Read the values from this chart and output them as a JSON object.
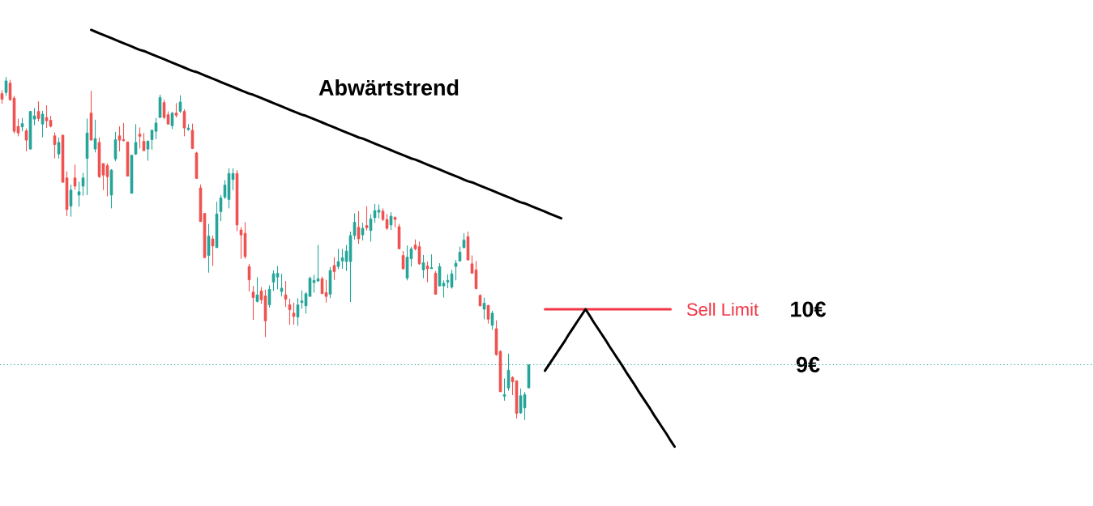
{
  "chart_data": {
    "type": "candlestick",
    "annotations": [
      "Abwärtstrend"
    ],
    "categories": [
      null,
      null,
      null,
      null,
      null,
      null,
      null,
      null,
      null,
      null,
      null,
      null,
      null,
      null,
      null,
      null,
      null,
      null,
      null,
      null,
      null,
      null,
      null,
      null,
      null,
      null,
      null,
      null,
      null,
      null,
      null,
      null,
      null,
      null,
      null,
      null,
      null,
      null,
      null,
      null,
      null,
      null,
      null,
      null,
      null,
      null,
      null,
      null,
      null,
      null,
      null,
      null,
      null,
      null,
      null,
      null,
      null,
      null,
      null,
      null,
      null,
      null,
      null,
      null,
      null,
      null,
      null,
      null,
      null,
      null,
      null,
      null,
      null,
      null,
      null,
      null,
      null,
      null,
      null,
      null,
      null,
      null,
      null,
      null,
      null,
      null,
      null,
      null,
      null,
      null,
      null,
      null,
      null,
      null,
      null,
      null,
      null,
      null,
      null,
      null,
      null,
      null,
      null,
      null,
      null,
      null,
      null,
      null,
      null,
      null,
      null,
      null,
      null,
      null,
      null,
      null,
      null,
      null,
      null,
      null,
      null,
      null,
      null,
      null,
      null,
      null,
      null,
      null,
      null,
      null,
      null,
      null,
      null,
      null,
      null,
      null,
      null,
      null,
      null,
      null,
      null,
      null,
      null,
      null,
      null,
      null,
      null,
      null,
      null,
      null,
      null,
      null,
      null,
      null,
      null,
      null,
      null,
      null,
      null,
      null,
      null,
      null,
      null,
      null,
      null,
      null,
      null,
      null,
      null,
      null,
      null,
      null,
      null,
      null,
      null,
      null,
      null,
      null,
      null,
      null,
      null,
      null,
      null,
      null,
      null,
      null,
      null,
      null,
      null,
      null,
      null,
      null,
      null,
      null,
      null,
      null,
      null,
      null,
      null,
      null,
      null,
      null,
      null,
      null,
      null,
      null,
      null,
      null,
      null,
      null,
      null,
      null,
      null,
      null,
      null,
      null,
      null,
      null,
      null,
      null,
      null,
      null,
      null,
      null,
      null,
      null,
      null,
      null,
      null,
      null,
      null,
      null,
      null,
      null,
      null,
      null,
      null,
      null,
      null,
      null,
      null,
      null,
      null,
      null,
      null,
      null,
      null,
      null,
      null,
      null,
      null,
      null,
      null,
      null,
      null,
      null,
      null,
      null,
      null,
      null,
      null,
      null,
      null,
      null,
      null,
      null,
      null,
      null,
      null,
      null
    ],
    "ohlc": [
      [
        13.89,
        13.95,
        13.71,
        13.79
      ],
      [
        13.91,
        14.19,
        13.85,
        14.12
      ],
      [
        14.08,
        14.14,
        13.76,
        13.78
      ],
      [
        13.81,
        13.85,
        13.17,
        13.21
      ],
      [
        13.3,
        13.44,
        13.12,
        13.18
      ],
      [
        13.29,
        13.45,
        13.21,
        13.35
      ],
      [
        13.22,
        13.26,
        12.85,
        13.05
      ],
      [
        12.89,
        13.58,
        12.88,
        13.57
      ],
      [
        13.43,
        13.63,
        13.32,
        13.49
      ],
      [
        13.57,
        13.75,
        13.39,
        13.44
      ],
      [
        13.34,
        13.58,
        13.1,
        13.52
      ],
      [
        13.46,
        13.68,
        13.27,
        13.4
      ],
      [
        13.41,
        13.49,
        13.28,
        13.3
      ],
      [
        13.13,
        13.19,
        12.72,
        12.97
      ],
      [
        12.8,
        13.1,
        12.72,
        13.01
      ],
      [
        13.14,
        13.15,
        12.29,
        12.29
      ],
      [
        12.37,
        12.49,
        11.68,
        11.8
      ],
      [
        11.86,
        12.25,
        11.67,
        12.15
      ],
      [
        12.37,
        12.61,
        12.16,
        12.22
      ],
      [
        12.06,
        12.3,
        11.85,
        12.12
      ],
      [
        12.22,
        12.46,
        12.05,
        12.37
      ],
      [
        12.72,
        13.44,
        12.06,
        13.18
      ],
      [
        13.54,
        13.94,
        13.05,
        13.05
      ],
      [
        12.89,
        13.42,
        12.83,
        13.08
      ],
      [
        13.01,
        13.1,
        12.37,
        12.39
      ],
      [
        12.63,
        12.63,
        12.15,
        12.42
      ],
      [
        12.59,
        12.63,
        12.04,
        12.39
      ],
      [
        12.06,
        12.53,
        11.82,
        12.51
      ],
      [
        12.71,
        13.2,
        12.67,
        13.06
      ],
      [
        13.13,
        13.3,
        12.85,
        13.05
      ],
      [
        13.06,
        13.36,
        13.03,
        13.04
      ],
      [
        13.02,
        13.02,
        12.4,
        12.4
      ],
      [
        12.09,
        12.78,
        12.09,
        12.78
      ],
      [
        12.8,
        13.34,
        12.78,
        13.01
      ],
      [
        13.16,
        13.28,
        12.9,
        13.12
      ],
      [
        13.03,
        13.18,
        12.86,
        12.86
      ],
      [
        12.89,
        13.05,
        12.68,
        13.03
      ],
      [
        13.06,
        13.24,
        12.88,
        13.23
      ],
      [
        13.21,
        13.45,
        13.07,
        13.36
      ],
      [
        13.46,
        13.87,
        13.45,
        13.82
      ],
      [
        13.73,
        13.78,
        13.43,
        13.46
      ],
      [
        13.51,
        13.57,
        13.33,
        13.34
      ],
      [
        13.31,
        13.56,
        13.25,
        13.54
      ],
      [
        13.54,
        13.72,
        13.46,
        13.5
      ],
      [
        13.57,
        13.86,
        13.54,
        13.74
      ],
      [
        13.57,
        13.61,
        13.12,
        13.27
      ],
      [
        13.24,
        13.34,
        13.22,
        13.27
      ],
      [
        13.23,
        13.35,
        12.89,
        12.9
      ],
      [
        12.82,
        12.84,
        12.35,
        12.36
      ],
      [
        12.19,
        12.25,
        11.58,
        11.58
      ],
      [
        11.73,
        11.73,
        10.93,
        10.93
      ],
      [
        10.97,
        11.54,
        10.66,
        11.32
      ],
      [
        11.27,
        11.33,
        10.78,
        11.14
      ],
      [
        11.11,
        11.94,
        11.11,
        11.72
      ],
      [
        11.76,
        12.06,
        11.59,
        12.01
      ],
      [
        12.02,
        12.33,
        11.99,
        12.24
      ],
      [
        11.98,
        12.54,
        11.82,
        12.45
      ],
      [
        12.34,
        12.54,
        12.15,
        12.45
      ],
      [
        12.45,
        12.51,
        11.41,
        11.52
      ],
      [
        11.43,
        11.48,
        10.91,
        11.34
      ],
      [
        11.37,
        11.57,
        10.91,
        10.95
      ],
      [
        10.77,
        10.82,
        10.32,
        10.53
      ],
      [
        10.31,
        10.42,
        9.81,
        10.21
      ],
      [
        10.14,
        10.58,
        10.12,
        10.26
      ],
      [
        10.33,
        10.4,
        10.1,
        10.17
      ],
      [
        10.24,
        10.35,
        9.5,
        9.79
      ],
      [
        10.08,
        10.43,
        10.03,
        10.36
      ],
      [
        10.49,
        10.7,
        10.33,
        10.64
      ],
      [
        10.58,
        10.78,
        10.36,
        10.65
      ],
      [
        10.32,
        10.64,
        10.23,
        10.38
      ],
      [
        10.26,
        10.51,
        10.04,
        10.18
      ],
      [
        10.08,
        10.19,
        9.72,
        9.99
      ],
      [
        9.93,
        10.12,
        9.72,
        9.87
      ],
      [
        9.86,
        10.2,
        9.7,
        10.08
      ],
      [
        10.12,
        10.34,
        10.01,
        10.15
      ],
      [
        10.06,
        10.31,
        9.92,
        10.28
      ],
      [
        10.23,
        10.59,
        10.23,
        10.56
      ],
      [
        10.48,
        10.62,
        10.3,
        10.52
      ],
      [
        10.51,
        11.16,
        10.49,
        10.55
      ],
      [
        10.55,
        10.59,
        10.28,
        10.28
      ],
      [
        10.3,
        10.53,
        10.12,
        10.23
      ],
      [
        10.27,
        10.76,
        10.2,
        10.7
      ],
      [
        10.79,
        10.94,
        10.53,
        10.68
      ],
      [
        10.77,
        11.09,
        10.72,
        10.86
      ],
      [
        10.87,
        11.09,
        10.73,
        10.93
      ],
      [
        10.86,
        11.16,
        10.69,
        11.05
      ],
      [
        10.86,
        11.4,
        10.13,
        11.33
      ],
      [
        11.33,
        11.73,
        11.26,
        11.57
      ],
      [
        11.48,
        11.77,
        11.18,
        11.27
      ],
      [
        11.34,
        11.56,
        11.24,
        11.46
      ],
      [
        11.51,
        11.86,
        11.42,
        11.47
      ],
      [
        11.42,
        11.71,
        11.22,
        11.63
      ],
      [
        11.65,
        11.9,
        11.56,
        11.78
      ],
      [
        11.75,
        11.89,
        11.64,
        11.79
      ],
      [
        11.77,
        11.82,
        11.59,
        11.62
      ],
      [
        11.62,
        11.72,
        11.43,
        11.46
      ],
      [
        11.52,
        11.75,
        11.43,
        11.68
      ],
      [
        11.66,
        11.67,
        11.48,
        11.62
      ],
      [
        11.49,
        11.54,
        11.08,
        11.09
      ],
      [
        10.97,
        11.05,
        10.71,
        10.73
      ],
      [
        10.56,
        11.15,
        10.52,
        10.94
      ],
      [
        10.91,
        11.13,
        10.77,
        11.09
      ],
      [
        11.16,
        11.26,
        11.06,
        11.09
      ],
      [
        11.13,
        11.22,
        10.8,
        10.82
      ],
      [
        10.71,
        10.98,
        10.56,
        10.84
      ],
      [
        10.78,
        10.86,
        10.49,
        10.73
      ],
      [
        10.73,
        10.99,
        10.73,
        10.75
      ],
      [
        10.65,
        10.69,
        10.26,
        10.27
      ],
      [
        10.42,
        10.83,
        10.41,
        10.77
      ],
      [
        10.42,
        10.52,
        10.21,
        10.47
      ],
      [
        10.49,
        10.63,
        10.38,
        10.52
      ],
      [
        10.4,
        10.71,
        10.37,
        10.64
      ],
      [
        10.77,
        10.89,
        10.52,
        10.83
      ],
      [
        10.87,
        11.13,
        10.86,
        11.03
      ],
      [
        11.11,
        11.37,
        11.1,
        11.25
      ],
      [
        11.31,
        11.4,
        10.88,
        10.89
      ],
      [
        10.82,
        10.97,
        10.64,
        10.65
      ],
      [
        10.71,
        10.87,
        10.36,
        10.37
      ],
      [
        10.25,
        10.27,
        10.05,
        10.06
      ],
      [
        10.0,
        10.21,
        9.82,
        10.11
      ],
      [
        10.07,
        10.08,
        9.74,
        9.82
      ],
      [
        9.71,
        9.97,
        9.63,
        9.93
      ],
      [
        9.65,
        9.8,
        9.16,
        9.18
      ],
      [
        9.24,
        9.26,
        8.51,
        8.51
      ],
      [
        8.43,
        8.75,
        8.35,
        8.46
      ],
      [
        8.58,
        9.2,
        8.53,
        8.9
      ],
      [
        8.77,
        8.79,
        8.45,
        8.69
      ],
      [
        8.71,
        8.71,
        8.03,
        8.12
      ],
      [
        8.13,
        8.57,
        8.11,
        8.44
      ],
      [
        8.22,
        8.51,
        8.0,
        8.46
      ],
      [
        8.58,
        9.0,
        8.58,
        9.0
      ],
      null,
      null,
      null,
      null,
      null,
      null,
      null,
      null,
      null,
      null,
      null,
      null,
      null,
      null,
      null,
      null,
      null,
      null,
      null,
      null,
      null,
      null,
      null,
      null,
      null,
      null,
      null,
      null,
      null,
      null,
      null,
      null,
      null,
      null,
      null,
      null,
      null,
      null,
      null,
      null,
      null,
      null,
      null,
      null,
      null,
      null,
      null,
      null,
      null,
      null,
      null,
      null,
      null,
      null,
      null,
      null,
      null,
      null,
      null,
      null,
      null,
      null,
      null,
      null,
      null,
      null,
      null,
      null,
      null,
      null,
      null,
      null,
      null,
      null,
      null,
      null,
      null,
      null,
      null,
      null,
      null,
      null,
      null,
      null,
      null,
      null,
      null,
      null,
      null,
      null,
      null,
      null,
      null,
      null,
      null,
      null,
      null,
      null,
      null,
      null,
      null,
      null,
      null,
      null,
      null,
      null,
      null,
      null,
      null,
      null,
      null,
      null,
      null,
      null,
      null,
      null,
      null,
      null,
      null,
      null,
      null,
      null,
      null,
      null,
      null,
      null,
      null,
      null,
      null,
      null,
      null,
      null,
      null,
      null,
      null,
      null,
      null,
      null,
      null
    ],
    "colors": [
      "#ef5350",
      "#26a69a",
      "#ef5350",
      "#ef5350",
      "#ef5350",
      "#26a69a",
      "#ef5350",
      "#26a69a",
      "#26a69a",
      "#ef5350",
      "#26a69a",
      "#ef5350",
      "#ef5350",
      "#ef5350",
      "#26a69a",
      "#ef5350",
      "#ef5350",
      "#26a69a",
      "#ef5350",
      "#26a69a",
      "#26a69a",
      "#26a69a",
      "#ef5350",
      "#26a69a",
      "#ef5350",
      "#ef5350",
      "#ef5350",
      "#26a69a",
      "#26a69a",
      "#ef5350",
      "#ef5350",
      "#ef5350",
      "#26a69a",
      "#26a69a",
      "#ef5350",
      "#ef5350",
      "#26a69a",
      "#26a69a",
      "#26a69a",
      "#26a69a",
      "#ef5350",
      "#ef5350",
      "#26a69a",
      "#ef5350",
      "#26a69a",
      "#ef5350",
      "#26a69a",
      "#ef5350",
      "#ef5350",
      "#ef5350",
      "#ef5350",
      "#26a69a",
      "#ef5350",
      "#26a69a",
      "#26a69a",
      "#26a69a",
      "#26a69a",
      "#26a69a",
      "#ef5350",
      "#ef5350",
      "#ef5350",
      "#ef5350",
      "#ef5350",
      "#26a69a",
      "#ef5350",
      "#ef5350",
      "#26a69a",
      "#26a69a",
      "#26a69a",
      "#26a69a",
      "#ef5350",
      "#ef5350",
      "#ef5350",
      "#26a69a",
      "#26a69a",
      "#26a69a",
      "#26a69a",
      "#26a69a",
      "#26a69a",
      "#ef5350",
      "#ef5350",
      "#26a69a",
      "#ef5350",
      "#26a69a",
      "#26a69a",
      "#26a69a",
      "#26a69a",
      "#26a69a",
      "#ef5350",
      "#26a69a",
      "#ef5350",
      "#26a69a",
      "#26a69a",
      "#26a69a",
      "#ef5350",
      "#ef5350",
      "#26a69a",
      "#ef5350",
      "#ef5350",
      "#ef5350",
      "#26a69a",
      "#26a69a",
      "#ef5350",
      "#ef5350",
      "#26a69a",
      "#ef5350",
      "#26a69a",
      "#ef5350",
      "#26a69a",
      "#26a69a",
      "#26a69a",
      "#26a69a",
      "#26a69a",
      "#26a69a",
      "#26a69a",
      "#ef5350",
      "#ef5350",
      "#ef5350",
      "#ef5350",
      "#26a69a",
      "#ef5350",
      "#26a69a",
      "#ef5350",
      "#ef5350",
      "#26a69a",
      "#26a69a",
      "#ef5350",
      "#ef5350",
      "#26a69a",
      "#26a69a",
      "#26a69a",
      null,
      null,
      null,
      null,
      null,
      null,
      null,
      null,
      null,
      null,
      null,
      null,
      null,
      null,
      null,
      null,
      null,
      null,
      null,
      null,
      null,
      null,
      null,
      null,
      null,
      null,
      null,
      null,
      null,
      null,
      null,
      null,
      null,
      null,
      null,
      null,
      null,
      null,
      null,
      null,
      null,
      null,
      null,
      null,
      null,
      null,
      null,
      null,
      null,
      null,
      null,
      null,
      null,
      null,
      null,
      null,
      null,
      null,
      null,
      null,
      null,
      null,
      null,
      null,
      null,
      null,
      null,
      null,
      null,
      null,
      null,
      null,
      null,
      null,
      null,
      null,
      null,
      null,
      null,
      null,
      null,
      null,
      null,
      null,
      null,
      null,
      null,
      null,
      null,
      null,
      null,
      null,
      null,
      null,
      null,
      null,
      null,
      null,
      null,
      null,
      null,
      null,
      null,
      null,
      null,
      null,
      null,
      null,
      null,
      null,
      null,
      null,
      null,
      null,
      null,
      null,
      null,
      null,
      null,
      null,
      null,
      null,
      null,
      null,
      null,
      null,
      null,
      null,
      null,
      null,
      null,
      null,
      null,
      null,
      null,
      null,
      null,
      null,
      null
    ],
    "series": [
      {
        "type": "line",
        "color": "#000000",
        "values": [
          null,
          null,
          null,
          null,
          null,
          null,
          null,
          null,
          null,
          null,
          null,
          null,
          null,
          null,
          null,
          null,
          null,
          null,
          null,
          null,
          null,
          null,
          15.04,
          15.01,
          14.98,
          14.95,
          14.92,
          14.89,
          14.86,
          14.83,
          14.8,
          14.77,
          14.74,
          14.71,
          14.68,
          14.66,
          14.63,
          14.6,
          14.57,
          14.54,
          14.51,
          14.48,
          14.45,
          14.42,
          14.39,
          14.36,
          14.33,
          14.3,
          14.28,
          14.25,
          14.22,
          14.19,
          14.16,
          14.13,
          14.1,
          14.07,
          14.04,
          14.01,
          13.98,
          13.95,
          13.92,
          13.89,
          13.87,
          13.84,
          13.81,
          13.78,
          13.75,
          13.72,
          13.69,
          13.66,
          13.63,
          13.6,
          13.57,
          13.54,
          13.51,
          13.49,
          13.46,
          13.43,
          13.4,
          13.37,
          13.34,
          13.31,
          13.28,
          13.25,
          13.22,
          13.19,
          13.16,
          13.13,
          13.1,
          13.08,
          13.05,
          13.02,
          12.99,
          12.96,
          12.93,
          12.9,
          12.87,
          12.84,
          12.81,
          12.78,
          12.75,
          12.72,
          12.7,
          12.67,
          12.64,
          12.61,
          12.58,
          12.55,
          12.52,
          12.49,
          12.46,
          12.43,
          12.4,
          12.37,
          12.34,
          12.31,
          12.29,
          12.26,
          12.23,
          12.2,
          12.17,
          12.14,
          12.11,
          12.08,
          12.05,
          12.02,
          11.99,
          11.96,
          11.93,
          11.91,
          11.88,
          11.85,
          11.82,
          11.79,
          11.76,
          11.73,
          11.7,
          11.67,
          11.64,
          null,
          null,
          null,
          null,
          null,
          null,
          null,
          null,
          null,
          null,
          null,
          null,
          null,
          null,
          null,
          null,
          null,
          null,
          null,
          null,
          null,
          null,
          null,
          null,
          null,
          null,
          null,
          null,
          null,
          null,
          null,
          null,
          null,
          null,
          null,
          null,
          null,
          null,
          null,
          null,
          null,
          null,
          null,
          null,
          null,
          null,
          null,
          null,
          null,
          null,
          null,
          null,
          null,
          null,
          null,
          null,
          null,
          null,
          null,
          null,
          null,
          null,
          null,
          null,
          null,
          null,
          null,
          null,
          null,
          null,
          null,
          null,
          null,
          null,
          null,
          null,
          null,
          null,
          null,
          null,
          null,
          null,
          null,
          null,
          null,
          null,
          null,
          null,
          null,
          null,
          null,
          null,
          null,
          null,
          null,
          null,
          null,
          null,
          null,
          null,
          null,
          null,
          null,
          null,
          null,
          null,
          null,
          null,
          null,
          null,
          null,
          null,
          null,
          null,
          null,
          null,
          null,
          null,
          null,
          null,
          null,
          null,
          null,
          null,
          null,
          null,
          null,
          null,
          null,
          null,
          null
        ]
      },
      {
        "type": "line",
        "name": "Sell Limit",
        "color": "#f23645",
        "values": [
          null,
          null,
          null,
          null,
          null,
          null,
          null,
          null,
          null,
          null,
          null,
          null,
          null,
          null,
          null,
          null,
          null,
          null,
          null,
          null,
          null,
          null,
          null,
          null,
          null,
          null,
          null,
          null,
          null,
          null,
          null,
          null,
          null,
          null,
          null,
          null,
          null,
          null,
          null,
          null,
          null,
          null,
          null,
          null,
          null,
          null,
          null,
          null,
          null,
          null,
          null,
          null,
          null,
          null,
          null,
          null,
          null,
          null,
          null,
          null,
          null,
          null,
          null,
          null,
          null,
          null,
          null,
          null,
          null,
          null,
          null,
          null,
          null,
          null,
          null,
          null,
          null,
          null,
          null,
          null,
          null,
          null,
          null,
          null,
          null,
          null,
          null,
          null,
          null,
          null,
          null,
          null,
          null,
          null,
          null,
          null,
          null,
          null,
          null,
          null,
          null,
          null,
          null,
          null,
          null,
          null,
          null,
          null,
          null,
          null,
          null,
          null,
          null,
          null,
          null,
          null,
          null,
          null,
          null,
          null,
          null,
          null,
          null,
          null,
          null,
          null,
          null,
          null,
          null,
          null,
          null,
          null,
          null,
          null,
          10,
          10,
          10,
          10,
          10,
          10,
          10,
          10,
          10,
          10,
          10,
          10,
          10,
          10,
          10,
          10,
          10,
          10,
          10,
          10,
          10,
          10,
          10,
          10,
          10,
          10,
          10,
          10,
          10,
          10,
          10,
          10,
          null,
          null,
          null,
          null,
          null,
          null,
          null,
          null,
          null,
          null,
          null,
          null,
          null,
          null,
          null,
          null,
          null,
          null,
          null,
          null,
          null,
          null,
          null,
          null,
          null,
          null,
          null,
          null,
          null,
          null,
          null,
          null,
          null,
          null,
          null,
          null,
          null,
          null,
          null,
          null,
          null,
          null,
          null,
          null,
          null,
          null,
          null,
          null,
          null,
          null,
          null,
          null,
          null,
          null,
          null,
          null,
          null,
          null,
          null,
          null,
          null,
          null,
          null,
          null,
          null,
          null,
          null,
          null,
          null,
          null,
          null,
          null,
          null,
          null,
          null,
          null,
          null,
          null,
          null,
          null,
          null,
          null,
          null,
          null,
          null,
          null,
          null,
          null,
          null,
          null,
          null,
          null,
          null,
          null,
          null,
          null,
          null,
          null,
          null,
          null,
          null,
          null,
          null,
          null
        ]
      },
      {
        "type": "line",
        "color": "#000000",
        "values": [
          null,
          null,
          null,
          null,
          null,
          null,
          null,
          null,
          null,
          null,
          null,
          null,
          null,
          null,
          null,
          null,
          null,
          null,
          null,
          null,
          null,
          null,
          null,
          null,
          null,
          null,
          null,
          null,
          null,
          null,
          null,
          null,
          null,
          null,
          null,
          null,
          null,
          null,
          null,
          null,
          null,
          null,
          null,
          null,
          null,
          null,
          null,
          null,
          null,
          null,
          null,
          null,
          null,
          null,
          null,
          null,
          null,
          null,
          null,
          null,
          null,
          null,
          null,
          null,
          null,
          null,
          null,
          null,
          null,
          null,
          null,
          null,
          null,
          null,
          null,
          null,
          null,
          null,
          null,
          null,
          null,
          null,
          null,
          null,
          null,
          null,
          null,
          null,
          null,
          null,
          null,
          null,
          null,
          null,
          null,
          null,
          null,
          null,
          null,
          null,
          null,
          null,
          null,
          null,
          null,
          null,
          null,
          null,
          null,
          null,
          null,
          null,
          null,
          null,
          null,
          null,
          null,
          null,
          null,
          null,
          null,
          null,
          null,
          null,
          null,
          null,
          null,
          null,
          null,
          null,
          null,
          null,
          null,
          null,
          8.89,
          9.0,
          9.11,
          9.22,
          9.33,
          9.44,
          9.56,
          9.67,
          9.78,
          9.89,
          10.0,
          9.89,
          9.77,
          9.66,
          9.55,
          9.44,
          9.32,
          9.21,
          9.1,
          8.99,
          8.87,
          8.76,
          8.65,
          8.53,
          8.42,
          8.31,
          8.2,
          8.08,
          7.97,
          7.86,
          7.75,
          7.63,
          7.52,
          null,
          null,
          null,
          null,
          null,
          null,
          null,
          null,
          null,
          null,
          null,
          null,
          null,
          null,
          null,
          null,
          null,
          null,
          null,
          null,
          null,
          null,
          null,
          null,
          null,
          null,
          null,
          null,
          null,
          null,
          null,
          null,
          null,
          null,
          null,
          null,
          null,
          null,
          null,
          null,
          null,
          null,
          null,
          null,
          null,
          null,
          null,
          null,
          null,
          null,
          null,
          null,
          null,
          null,
          null,
          null,
          null,
          null,
          null,
          null,
          null,
          null,
          null,
          null,
          null,
          null,
          null,
          null,
          null,
          null,
          null,
          null,
          null,
          null,
          null,
          null,
          null,
          null,
          null,
          null,
          null,
          null,
          null,
          null,
          null,
          null,
          null,
          null,
          null,
          null,
          null,
          null,
          null,
          null,
          null,
          null,
          null,
          null,
          null,
          null,
          null,
          null,
          null
        ]
      }
    ],
    "ylim": [
      6.45,
      15.58
    ],
    "yticks": [
      {
        "value": 9,
        "label": "9€"
      },
      {
        "value": 10,
        "label": "10€"
      }
    ],
    "ref_lines": [
      {
        "axis": "y",
        "value": 9,
        "color": "#26a69a",
        "line_style": "dotted"
      }
    ],
    "tick_labels": "y"
  }
}
